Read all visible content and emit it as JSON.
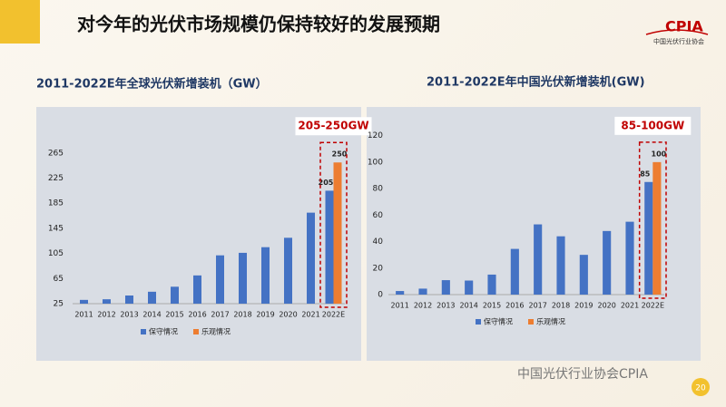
{
  "header": {
    "title": "对今年的光伏市场规模仍保持较好的发展预期",
    "logo": "CPIA",
    "logo_caption": "中国光伏行业协会"
  },
  "footer": {
    "watermark": "中国光伏行业协会CPIA",
    "page": "20"
  },
  "chart_data": [
    {
      "type": "bar",
      "title": "2011-2022E年全球光伏新增装机（GW）",
      "categories": [
        "2011",
        "2012",
        "2013",
        "2014",
        "2015",
        "2016",
        "2017",
        "2018",
        "2019",
        "2020",
        "2021",
        "2022E"
      ],
      "series": [
        {
          "name": "保守情况",
          "color": "#4472c4",
          "values": [
            31,
            32,
            38,
            44,
            52,
            70,
            102,
            106,
            115,
            130,
            170,
            205
          ],
          "value_labels": [
            null,
            null,
            null,
            null,
            null,
            null,
            null,
            null,
            null,
            null,
            null,
            "205"
          ]
        },
        {
          "name": "乐观情况",
          "color": "#ed7d31",
          "values": [
            null,
            null,
            null,
            null,
            null,
            null,
            null,
            null,
            null,
            null,
            null,
            250
          ],
          "value_labels": [
            null,
            null,
            null,
            null,
            null,
            null,
            null,
            null,
            null,
            null,
            null,
            "250"
          ]
        }
      ],
      "ylim": [
        25,
        285
      ],
      "yticks": [
        25,
        65,
        105,
        145,
        185,
        225,
        265
      ],
      "grid": false,
      "annotation": "205-250GW"
    },
    {
      "type": "bar",
      "title": "2011-2022E年中国光伏新增装机(GW)",
      "categories": [
        "2011",
        "2012",
        "2013",
        "2014",
        "2015",
        "2016",
        "2017",
        "2018",
        "2019",
        "2020",
        "2021",
        "2022E"
      ],
      "series": [
        {
          "name": "保守情况",
          "color": "#4472c4",
          "values": [
            2.7,
            4.5,
            10.9,
            10.6,
            15.1,
            34.5,
            53,
            44,
            30,
            48,
            55,
            85
          ],
          "value_labels": [
            null,
            null,
            null,
            null,
            null,
            null,
            null,
            null,
            null,
            null,
            null,
            "85"
          ]
        },
        {
          "name": "乐观情况",
          "color": "#ed7d31",
          "values": [
            null,
            null,
            null,
            null,
            null,
            null,
            null,
            null,
            null,
            null,
            null,
            100
          ],
          "value_labels": [
            null,
            null,
            null,
            null,
            null,
            null,
            null,
            null,
            null,
            null,
            null,
            "100"
          ]
        }
      ],
      "ylim": [
        0,
        130
      ],
      "yticks": [
        0,
        20,
        40,
        60,
        80,
        100,
        120
      ],
      "grid": false,
      "annotation": "85-100GW"
    }
  ]
}
